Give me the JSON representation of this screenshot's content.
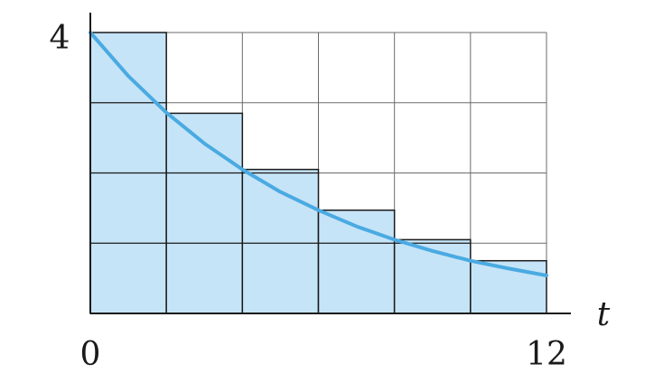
{
  "chart_data": {
    "type": "bar",
    "x": [
      0,
      2,
      4,
      6,
      8,
      10
    ],
    "bar_width": 2,
    "values": [
      4.0,
      2.85,
      2.05,
      1.47,
      1.05,
      0.75
    ],
    "curve": {
      "x": [
        0,
        1,
        2,
        3,
        4,
        5,
        6,
        7,
        8,
        9,
        10,
        11,
        12
      ],
      "y": [
        4.0,
        3.38,
        2.86,
        2.42,
        2.05,
        1.73,
        1.47,
        1.24,
        1.05,
        0.89,
        0.75,
        0.64,
        0.54
      ]
    },
    "xlim": [
      0,
      12
    ],
    "ylim": [
      0,
      4
    ],
    "x_ticks": [
      "0",
      "12"
    ],
    "y_ticks": [
      "4"
    ],
    "xlabel": "t",
    "ylabel": "",
    "grid": true,
    "colors": {
      "bar_fill": "#c6e4f7",
      "bar_stroke": "#1a1a1a",
      "curve": "#4aaae2",
      "grid": "#6b6b6b",
      "axis": "#1a1a1a"
    }
  }
}
